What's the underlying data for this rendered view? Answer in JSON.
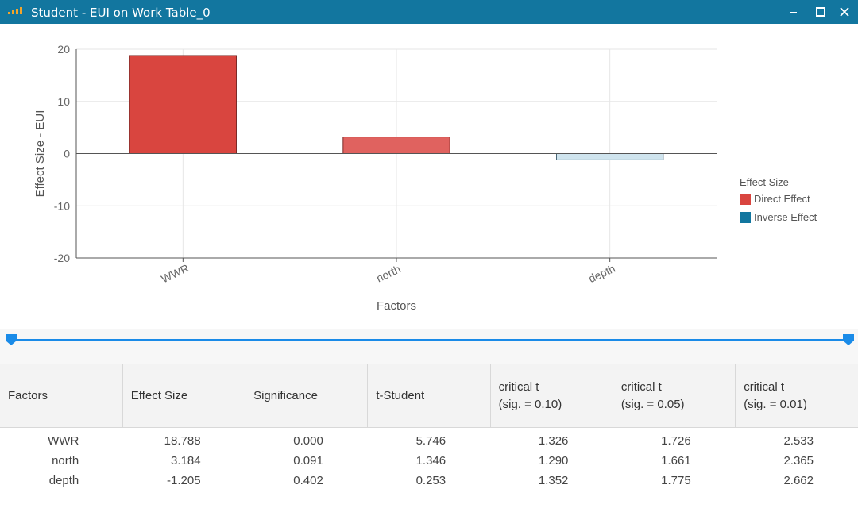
{
  "window": {
    "title": "Student - EUI on Work Table_0",
    "icons": {
      "app": "bar-chart-icon",
      "minimize": "minimize-icon",
      "maximize": "maximize-icon",
      "close": "close-icon"
    }
  },
  "chart_data": {
    "type": "bar",
    "categories": [
      "WWR",
      "north",
      "depth"
    ],
    "values": [
      18.788,
      3.184,
      -1.205
    ],
    "effect": [
      "Direct Effect",
      "Direct Effect",
      "Inverse Effect"
    ],
    "xlabel": "Factors",
    "ylabel": "Effect Size - EUI",
    "ylim": [
      -20,
      20
    ],
    "yticks": [
      20,
      10,
      0,
      -10,
      -20
    ],
    "grid": true,
    "legend": {
      "title": "Effect Size",
      "placement": "right",
      "entries": [
        "Direct Effect",
        "Inverse Effect"
      ]
    },
    "colors": {
      "WWR": "#d9453f",
      "north": "#e0625f",
      "depth": "#cfe4ee",
      "legend_direct": "#d9453f",
      "legend_inverse": "#12769f",
      "bar_border_direct": "#7a2a27",
      "bar_border_inverse": "#4a6878"
    }
  },
  "slider": {
    "color": "#1a8be8"
  },
  "table": {
    "headers": [
      [
        "Factors"
      ],
      [
        "Effect Size"
      ],
      [
        "Significance"
      ],
      [
        "t-Student"
      ],
      [
        "critical t",
        "(sig. = 0.10)"
      ],
      [
        "critical t",
        "(sig. = 0.05)"
      ],
      [
        "critical t",
        "(sig. = 0.01)"
      ]
    ],
    "rows": [
      [
        "WWR",
        "18.788",
        "0.000",
        "5.746",
        "1.326",
        "1.726",
        "2.533"
      ],
      [
        "north",
        "3.184",
        "0.091",
        "1.346",
        "1.290",
        "1.661",
        "2.365"
      ],
      [
        "depth",
        "-1.205",
        "0.402",
        "0.253",
        "1.352",
        "1.775",
        "2.662"
      ]
    ]
  }
}
